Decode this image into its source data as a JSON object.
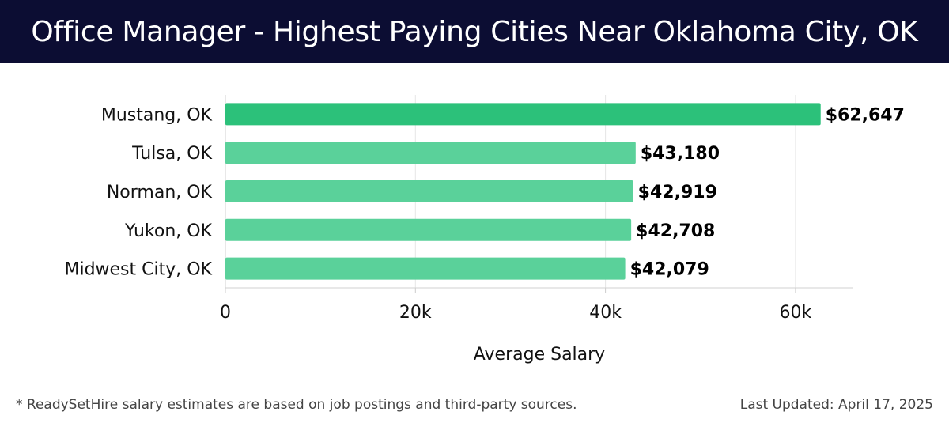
{
  "header": {
    "title": "Office Manager - Highest Paying Cities Near Oklahoma City, OK"
  },
  "footer": {
    "note": "* ReadySetHire salary estimates are based on job postings and third-party sources.",
    "updated": "Last Updated: April 17, 2025"
  },
  "colors": {
    "header_bg": "#0c0d33",
    "bar_top": "#2cc17a",
    "bar_other": "#5ad19a",
    "grid": "#e6e6e6"
  },
  "chart_data": {
    "type": "bar",
    "orientation": "horizontal",
    "title": "Office Manager - Highest Paying Cities Near Oklahoma City, OK",
    "categories": [
      "Mustang, OK",
      "Tulsa, OK",
      "Norman, OK",
      "Yukon, OK",
      "Midwest City, OK"
    ],
    "values": [
      62647,
      43180,
      42919,
      42708,
      42079
    ],
    "value_labels": [
      "$62,647",
      "$43,180",
      "$42,919",
      "$42,708",
      "$42,079"
    ],
    "xlabel": "Average Salary",
    "ylabel": "",
    "xlim": [
      0,
      66000
    ],
    "xticks": [
      0,
      20000,
      40000,
      60000
    ],
    "xtick_labels": [
      "0",
      "20k",
      "40k",
      "60k"
    ],
    "grid": true,
    "legend": "none"
  }
}
